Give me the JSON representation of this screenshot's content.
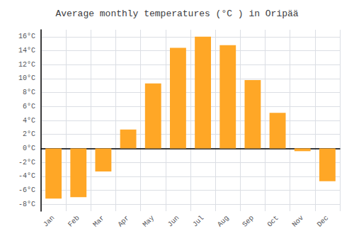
{
  "chart_data": {
    "type": "bar",
    "title": "Average monthly temperatures (°C ) in Oripää",
    "categories": [
      "Jan",
      "Feb",
      "Mar",
      "Apr",
      "May",
      "Jun",
      "Jul",
      "Aug",
      "Sep",
      "Oct",
      "Nov",
      "Dec"
    ],
    "values": [
      -7.2,
      -7.0,
      -3.3,
      2.7,
      9.3,
      14.4,
      16.0,
      14.8,
      9.8,
      5.1,
      -0.4,
      -4.7
    ],
    "color": "#FFA726",
    "ylim": [
      -9,
      17
    ],
    "yticks": [
      {
        "value": -8,
        "label": "-8°C"
      },
      {
        "value": -6,
        "label": "-6°C"
      },
      {
        "value": -4,
        "label": "-4°C"
      },
      {
        "value": -2,
        "label": "-2°C"
      },
      {
        "value": 0,
        "label": "0°C"
      },
      {
        "value": 2,
        "label": "2°C"
      },
      {
        "value": 4,
        "label": "4°C"
      },
      {
        "value": 6,
        "label": "6°C"
      },
      {
        "value": 8,
        "label": "8°C"
      },
      {
        "value": 10,
        "label": "10°C"
      },
      {
        "value": 12,
        "label": "12°C"
      },
      {
        "value": 14,
        "label": "14°C"
      },
      {
        "value": 16,
        "label": "16°C"
      }
    ],
    "grid": true
  }
}
